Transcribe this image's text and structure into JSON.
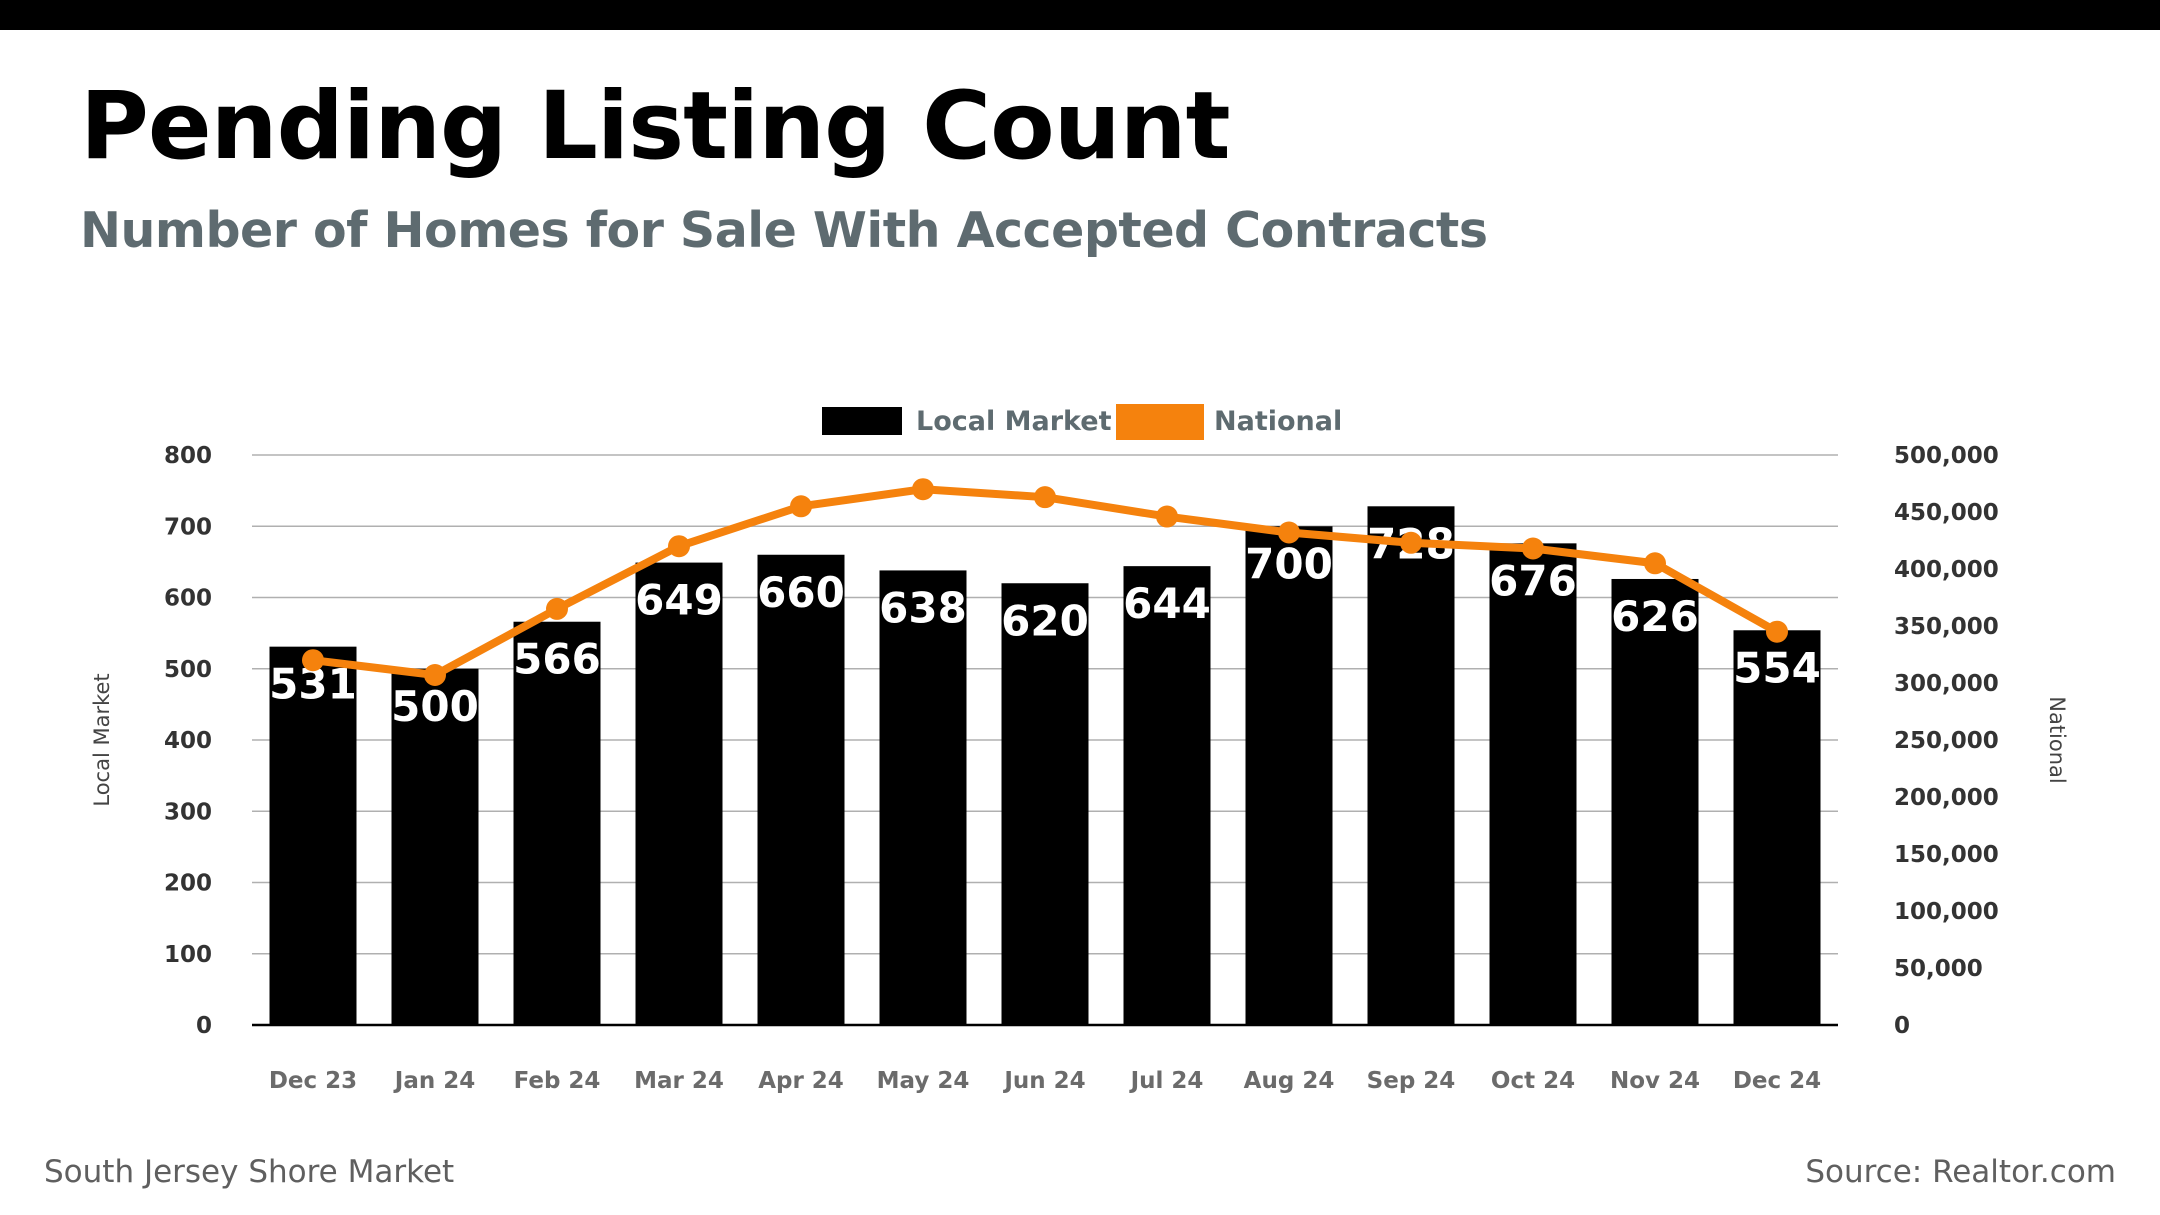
{
  "header": {
    "title": "Pending Listing Count",
    "subtitle": "Number of Homes for Sale With Accepted Contracts"
  },
  "footer": {
    "left": "South Jersey Shore Market",
    "right": "Source: Realtor.com"
  },
  "colors": {
    "local": "#000000",
    "national": "#f5820d",
    "grid": "#b0b0b0"
  },
  "chart_data": {
    "type": "bar",
    "categories": [
      "Dec 23",
      "Jan 24",
      "Feb 24",
      "Mar 24",
      "Apr 24",
      "May 24",
      "Jun 24",
      "Jul 24",
      "Aug 24",
      "Sep 24",
      "Oct 24",
      "Nov 24",
      "Dec 24"
    ],
    "series": [
      {
        "name": "Local Market",
        "type": "bar",
        "axis": "left",
        "values": [
          531,
          500,
          566,
          649,
          660,
          638,
          620,
          644,
          700,
          728,
          676,
          626,
          554
        ],
        "data_labels": [
          "531",
          "500",
          "566",
          "649",
          "660",
          "638",
          "620",
          "644",
          "700",
          "728",
          "676",
          "626",
          "554"
        ]
      },
      {
        "name": "National",
        "type": "line",
        "axis": "right",
        "values": [
          320000,
          307000,
          365000,
          420000,
          455000,
          470000,
          463000,
          446000,
          432000,
          423000,
          418000,
          405000,
          345000
        ]
      }
    ],
    "ylabel": "Local Market",
    "y2label": "National",
    "ylim": [
      0,
      800
    ],
    "y2lim": [
      0,
      500000
    ],
    "yticks": [
      "0",
      "100",
      "200",
      "300",
      "400",
      "500",
      "600",
      "700",
      "800"
    ],
    "y2ticks": [
      "0",
      "50,000",
      "100,000",
      "150,000",
      "200,000",
      "250,000",
      "300,000",
      "350,000",
      "400,000",
      "450,000",
      "500,000"
    ],
    "grid": true,
    "legend": "top-center"
  }
}
